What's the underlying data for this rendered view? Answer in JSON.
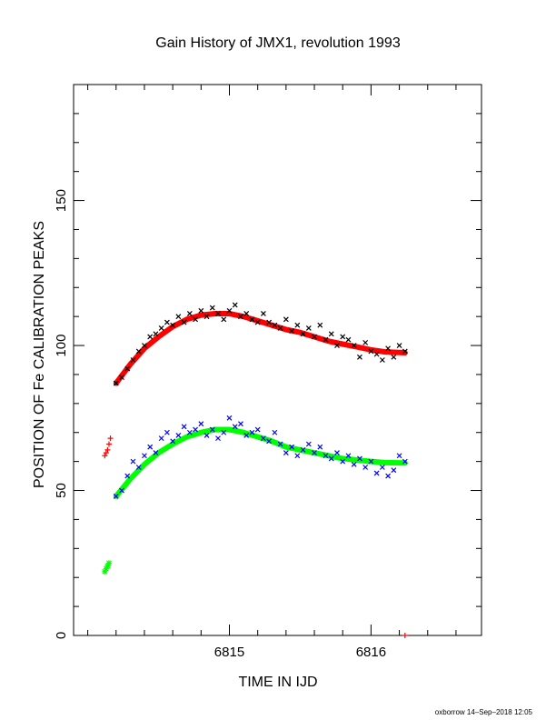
{
  "chart_data": {
    "type": "scatter",
    "title": "Gain History of JMX1, revolution 1993",
    "xlabel": "TIME IN IJD",
    "ylabel": "POSITION OF Fe CALIBRATION PEAKS",
    "xlim": [
      6813.9,
      6816.78
    ],
    "ylim": [
      0,
      190
    ],
    "x_ticks": [
      6815,
      6816
    ],
    "x_tick_labels": [
      "6815",
      "6816"
    ],
    "y_ticks": [
      0,
      50,
      100,
      150
    ],
    "y_tick_labels": [
      "0",
      "50",
      "100",
      "150"
    ],
    "grid": false,
    "legend": "none",
    "series": [
      {
        "marker": "x",
        "color": "#000000",
        "x": [
          6814.2,
          6814.24,
          6814.28,
          6814.32,
          6814.36,
          6814.4,
          6814.44,
          6814.48,
          6814.52,
          6814.56,
          6814.6,
          6814.64,
          6814.68,
          6814.72,
          6814.76,
          6814.8,
          6814.84,
          6814.88,
          6814.92,
          6814.96,
          6815.0,
          6815.04,
          6815.08,
          6815.12,
          6815.16,
          6815.2,
          6815.24,
          6815.28,
          6815.32,
          6815.36,
          6815.4,
          6815.44,
          6815.48,
          6815.52,
          6815.56,
          6815.6,
          6815.64,
          6815.68,
          6815.72,
          6815.76,
          6815.8,
          6815.84,
          6815.88,
          6815.92,
          6815.96,
          6816.0,
          6816.04,
          6816.08,
          6816.12,
          6816.16,
          6816.2,
          6816.24
        ],
        "y": [
          87,
          89,
          92,
          95,
          98,
          100,
          103,
          104,
          106,
          108,
          107,
          110,
          108,
          111,
          109,
          112,
          110,
          113,
          111,
          109,
          112,
          114,
          110,
          111,
          109,
          108,
          111,
          108,
          107,
          106,
          109,
          105,
          107,
          104,
          106,
          103,
          107,
          102,
          104,
          100,
          103,
          102,
          100,
          96,
          101,
          98,
          97,
          95,
          99,
          96,
          100,
          98
        ]
      },
      {
        "marker": "x",
        "color": "#0000ff",
        "x": [
          6814.2,
          6814.24,
          6814.28,
          6814.32,
          6814.36,
          6814.4,
          6814.44,
          6814.48,
          6814.52,
          6814.56,
          6814.6,
          6814.64,
          6814.68,
          6814.72,
          6814.76,
          6814.8,
          6814.84,
          6814.88,
          6814.92,
          6814.96,
          6815.0,
          6815.04,
          6815.08,
          6815.12,
          6815.16,
          6815.2,
          6815.24,
          6815.28,
          6815.32,
          6815.36,
          6815.4,
          6815.44,
          6815.48,
          6815.52,
          6815.56,
          6815.6,
          6815.64,
          6815.68,
          6815.72,
          6815.76,
          6815.8,
          6815.84,
          6815.88,
          6815.92,
          6815.96,
          6816.0,
          6816.04,
          6816.08,
          6816.12,
          6816.16,
          6816.2,
          6816.24
        ],
        "y": [
          48,
          50,
          55,
          60,
          58,
          62,
          65,
          63,
          68,
          70,
          67,
          69,
          72,
          70,
          71,
          73,
          69,
          71,
          68,
          70,
          75,
          72,
          73,
          69,
          70,
          71,
          68,
          67,
          70,
          66,
          63,
          65,
          62,
          64,
          66,
          63,
          65,
          62,
          61,
          63,
          60,
          62,
          59,
          61,
          58,
          60,
          56,
          58,
          55,
          57,
          62,
          60
        ]
      },
      {
        "marker": "+",
        "color": "#ff0000",
        "x": [
          6814.12,
          6814.13,
          6814.14,
          6814.15,
          6814.16
        ],
        "y": [
          62,
          63,
          64,
          66,
          68
        ]
      },
      {
        "marker": "+",
        "color": "#ff0000",
        "x": [
          6816.24
        ],
        "y": [
          0
        ]
      },
      {
        "marker": "*",
        "color": "#00ff00",
        "x": [
          6814.12,
          6814.13,
          6814.14,
          6814.15
        ],
        "y": [
          22,
          23,
          24,
          25
        ]
      },
      {
        "marker": "line",
        "color": "#ff0000",
        "x": [
          6814.2,
          6814.3,
          6814.4,
          6814.5,
          6814.6,
          6814.7,
          6814.8,
          6814.9,
          6815.0,
          6815.1,
          6815.2,
          6815.3,
          6815.4,
          6815.5,
          6815.6,
          6815.7,
          6815.8,
          6815.9,
          6816.0,
          6816.1,
          6816.24
        ],
        "y": [
          87,
          93.5,
          99,
          103,
          106.5,
          109,
          110.5,
          111,
          111,
          110,
          108.5,
          107,
          105.5,
          104.5,
          103,
          101.5,
          100.5,
          99.5,
          98.5,
          97.8,
          97.5
        ]
      },
      {
        "marker": "line",
        "color": "#00ff00",
        "x": [
          6814.2,
          6814.3,
          6814.4,
          6814.5,
          6814.6,
          6814.7,
          6814.8,
          6814.9,
          6815.0,
          6815.1,
          6815.2,
          6815.3,
          6815.4,
          6815.5,
          6815.6,
          6815.7,
          6815.8,
          6815.9,
          6816.0,
          6816.1,
          6816.24
        ],
        "y": [
          48,
          54,
          59,
          63,
          66,
          68.5,
          70,
          71,
          71,
          70,
          68.5,
          67,
          65,
          64,
          63,
          62,
          61,
          60.5,
          60,
          59.6,
          59.5
        ]
      }
    ]
  },
  "footer": {
    "credit": "oxborrow 14–Sep–2018 12:05"
  }
}
